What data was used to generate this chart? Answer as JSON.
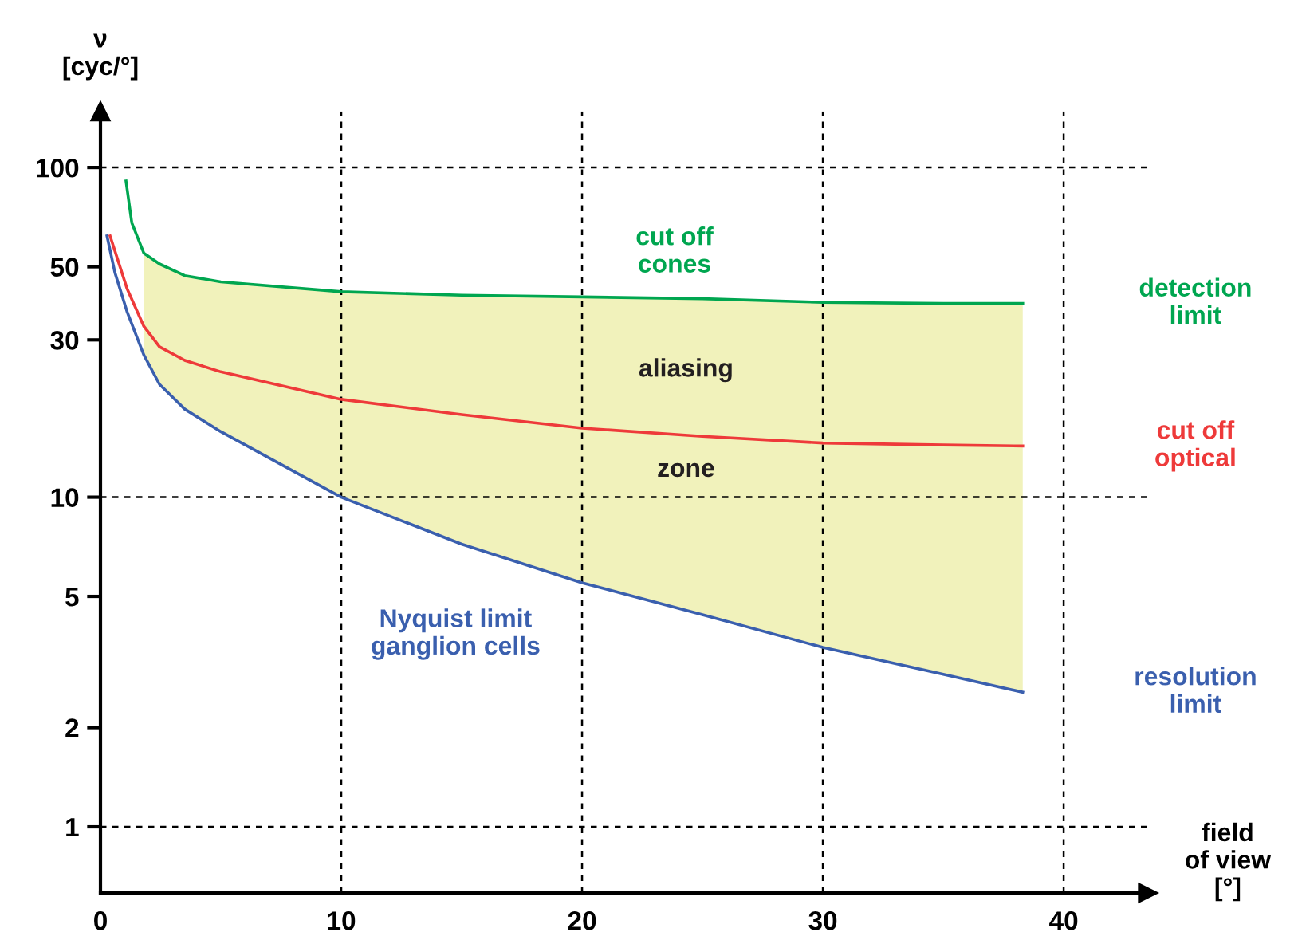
{
  "chart_data": {
    "type": "line",
    "xlabel": "field\nof view\n[°]",
    "ylabel": "ν\n[cyc/°]",
    "log": "y",
    "xlim": [
      0,
      43.5
    ],
    "ylim": [
      0.63,
      148
    ],
    "xticks": [
      0,
      10,
      20,
      30,
      40
    ],
    "yticks": [
      1,
      2,
      5,
      10,
      30,
      50,
      100
    ],
    "grid": false,
    "series": [
      {
        "name": "detection\nlimit",
        "color": "#00a650",
        "x": [
          1.06,
          1.3,
          1.8,
          2.45,
          3.5,
          5,
          10,
          15,
          20,
          25,
          30,
          35,
          38.3
        ],
        "values": [
          91,
          68,
          55,
          51,
          47,
          45,
          42,
          41,
          40.5,
          40,
          39,
          38.7,
          38.7
        ]
      },
      {
        "name": "cut off\noptical",
        "color": "#ee3a3a",
        "x": [
          0.4,
          1.1,
          1.8,
          2.45,
          3.5,
          5,
          10,
          15,
          20,
          25,
          30,
          35,
          38.3
        ],
        "values": [
          62,
          43,
          33,
          28.6,
          26,
          24,
          19.8,
          17.8,
          16.2,
          15.3,
          14.6,
          14.4,
          14.3
        ],
        "lower": [
          null,
          null,
          27,
          22,
          18.5,
          15.8,
          10,
          7.2,
          5.5,
          4.4,
          3.5,
          2.9,
          2.56
        ],
        "upper": [
          null,
          null,
          55,
          51,
          47,
          45,
          42,
          41,
          40.5,
          40,
          39,
          38.7,
          38.7
        ]
      },
      {
        "name": "resolution\nlimit",
        "color": "#3a5fae",
        "x": [
          0.27,
          0.6,
          1.1,
          1.8,
          2.45,
          3.5,
          5,
          10,
          15,
          20,
          25,
          30,
          35,
          38.3
        ],
        "values": [
          62,
          48,
          36.6,
          27,
          22,
          18.5,
          15.8,
          10,
          7.2,
          5.5,
          4.4,
          3.5,
          2.9,
          2.56
        ]
      }
    ],
    "ref_lines": [
      {
        "axis": "y",
        "value": 1,
        "color": "#000000",
        "line_style": "dashed"
      },
      {
        "axis": "y",
        "value": 10,
        "color": "#000000",
        "line_style": "dashed"
      },
      {
        "axis": "y",
        "value": 100,
        "color": "#000000",
        "line_style": "dashed"
      },
      {
        "axis": "x",
        "value": 10,
        "color": "#000000",
        "line_style": "dashed"
      },
      {
        "axis": "x",
        "value": 20,
        "color": "#000000",
        "line_style": "dashed"
      },
      {
        "axis": "x",
        "value": 30,
        "color": "#000000",
        "line_style": "dashed"
      },
      {
        "axis": "x",
        "value": 40,
        "color": "#000000",
        "line_style": "dashed"
      }
    ],
    "annotations": [
      "cut off\ncones",
      "aliasing",
      "zone",
      "Nyquist limit\nganglion cells"
    ]
  }
}
